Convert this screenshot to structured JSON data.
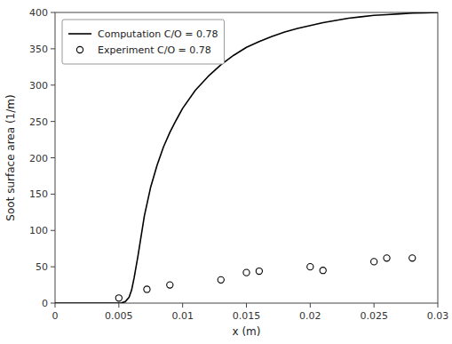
{
  "chart_data": {
    "type": "line",
    "xlabel": "x (m)",
    "ylabel": "Soot surface area (1/m)",
    "xlim": [
      0,
      0.03
    ],
    "ylim": [
      0,
      400
    ],
    "xticks": [
      0,
      0.005,
      0.01,
      0.015,
      0.02,
      0.025,
      0.03
    ],
    "yticks": [
      0,
      50,
      100,
      150,
      200,
      250,
      300,
      350,
      400
    ],
    "grid": false,
    "legend": "upper-left",
    "series": [
      {
        "name": "Computation C/O = 0.78",
        "type": "line",
        "color": "#000000",
        "line_style": "solid",
        "x": [
          0.0,
          0.001,
          0.002,
          0.003,
          0.004,
          0.0045,
          0.005,
          0.0052,
          0.0055,
          0.0058,
          0.006,
          0.0062,
          0.0065,
          0.007,
          0.0075,
          0.008,
          0.0085,
          0.009,
          0.0095,
          0.01,
          0.011,
          0.012,
          0.013,
          0.014,
          0.015,
          0.016,
          0.017,
          0.018,
          0.019,
          0.02,
          0.021,
          0.022,
          0.023,
          0.024,
          0.025,
          0.026,
          0.027,
          0.028,
          0.029,
          0.03
        ],
        "values": [
          0.0,
          0.0,
          0.0,
          0.0,
          0.0,
          0.0,
          0.0,
          0.3,
          2.0,
          8.0,
          18.0,
          35.0,
          65.0,
          120.0,
          160.0,
          190.0,
          215.0,
          235.0,
          252.0,
          268.0,
          293.0,
          312.0,
          328.0,
          341.0,
          352.0,
          360.0,
          367.0,
          373.0,
          378.0,
          382.0,
          386.0,
          389.0,
          392.0,
          394.0,
          396.0,
          397.0,
          398.0,
          399.0,
          399.5,
          400.0
        ]
      },
      {
        "name": "Experiment C/O = 0.78",
        "type": "scatter",
        "color": "#000000",
        "marker": "circle",
        "x": [
          0.005,
          0.0072,
          0.009,
          0.013,
          0.015,
          0.016,
          0.02,
          0.021,
          0.025,
          0.026,
          0.028
        ],
        "values": [
          7.0,
          19.0,
          25.0,
          32.0,
          42.0,
          44.0,
          50.0,
          45.0,
          57.0,
          62.0,
          62.0
        ]
      }
    ]
  }
}
